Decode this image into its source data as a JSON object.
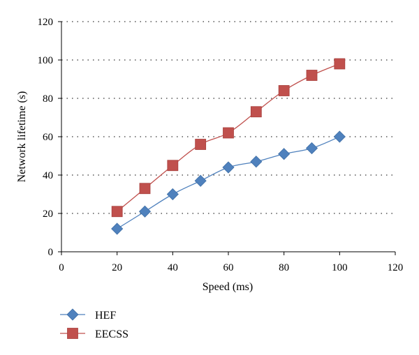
{
  "chart_data": {
    "type": "line",
    "title": "",
    "xlabel": "Speed (ms)",
    "ylabel": "Network lifetime (s)",
    "xlim": [
      0,
      120
    ],
    "ylim": [
      0,
      120
    ],
    "xticks": [
      0,
      20,
      40,
      60,
      80,
      100,
      120
    ],
    "yticks": [
      0,
      20,
      40,
      60,
      80,
      100,
      120
    ],
    "grid": "horizontal dotted",
    "legend_position": "bottom-left",
    "x": [
      20,
      30,
      40,
      50,
      60,
      70,
      80,
      90,
      100
    ],
    "series": [
      {
        "name": "HEF",
        "marker": "diamond",
        "color": "#4f81bd",
        "values": [
          12,
          21,
          30,
          37,
          44,
          47,
          51,
          54,
          60
        ]
      },
      {
        "name": "EECSS",
        "marker": "square",
        "color": "#c0504d",
        "values": [
          21,
          33,
          45,
          56,
          62,
          73,
          84,
          92,
          98
        ]
      }
    ]
  }
}
